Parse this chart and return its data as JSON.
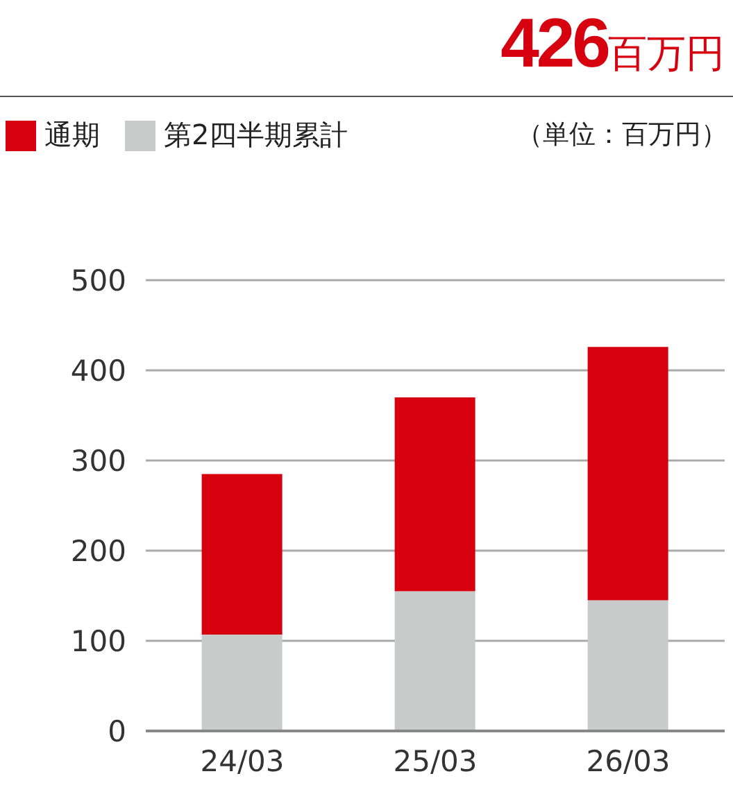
{
  "chart_data": {
    "type": "bar",
    "title": "426百万円",
    "annotations": [
      "（単位：百万円）"
    ],
    "categories": [
      "24/03",
      "25/03",
      "26/03"
    ],
    "series": [
      {
        "name": "第2四半期累計",
        "color": "#c9caca",
        "values": [
          107,
          155,
          145
        ]
      },
      {
        "name": "通期",
        "color": "#d7000f",
        "values": [
          178,
          215,
          281
        ]
      }
    ],
    "stacked": true,
    "ylim": [
      0,
      500
    ],
    "yticks": [
      0,
      100,
      200,
      300,
      400,
      500
    ],
    "grid": "y",
    "legend": "top left"
  }
}
